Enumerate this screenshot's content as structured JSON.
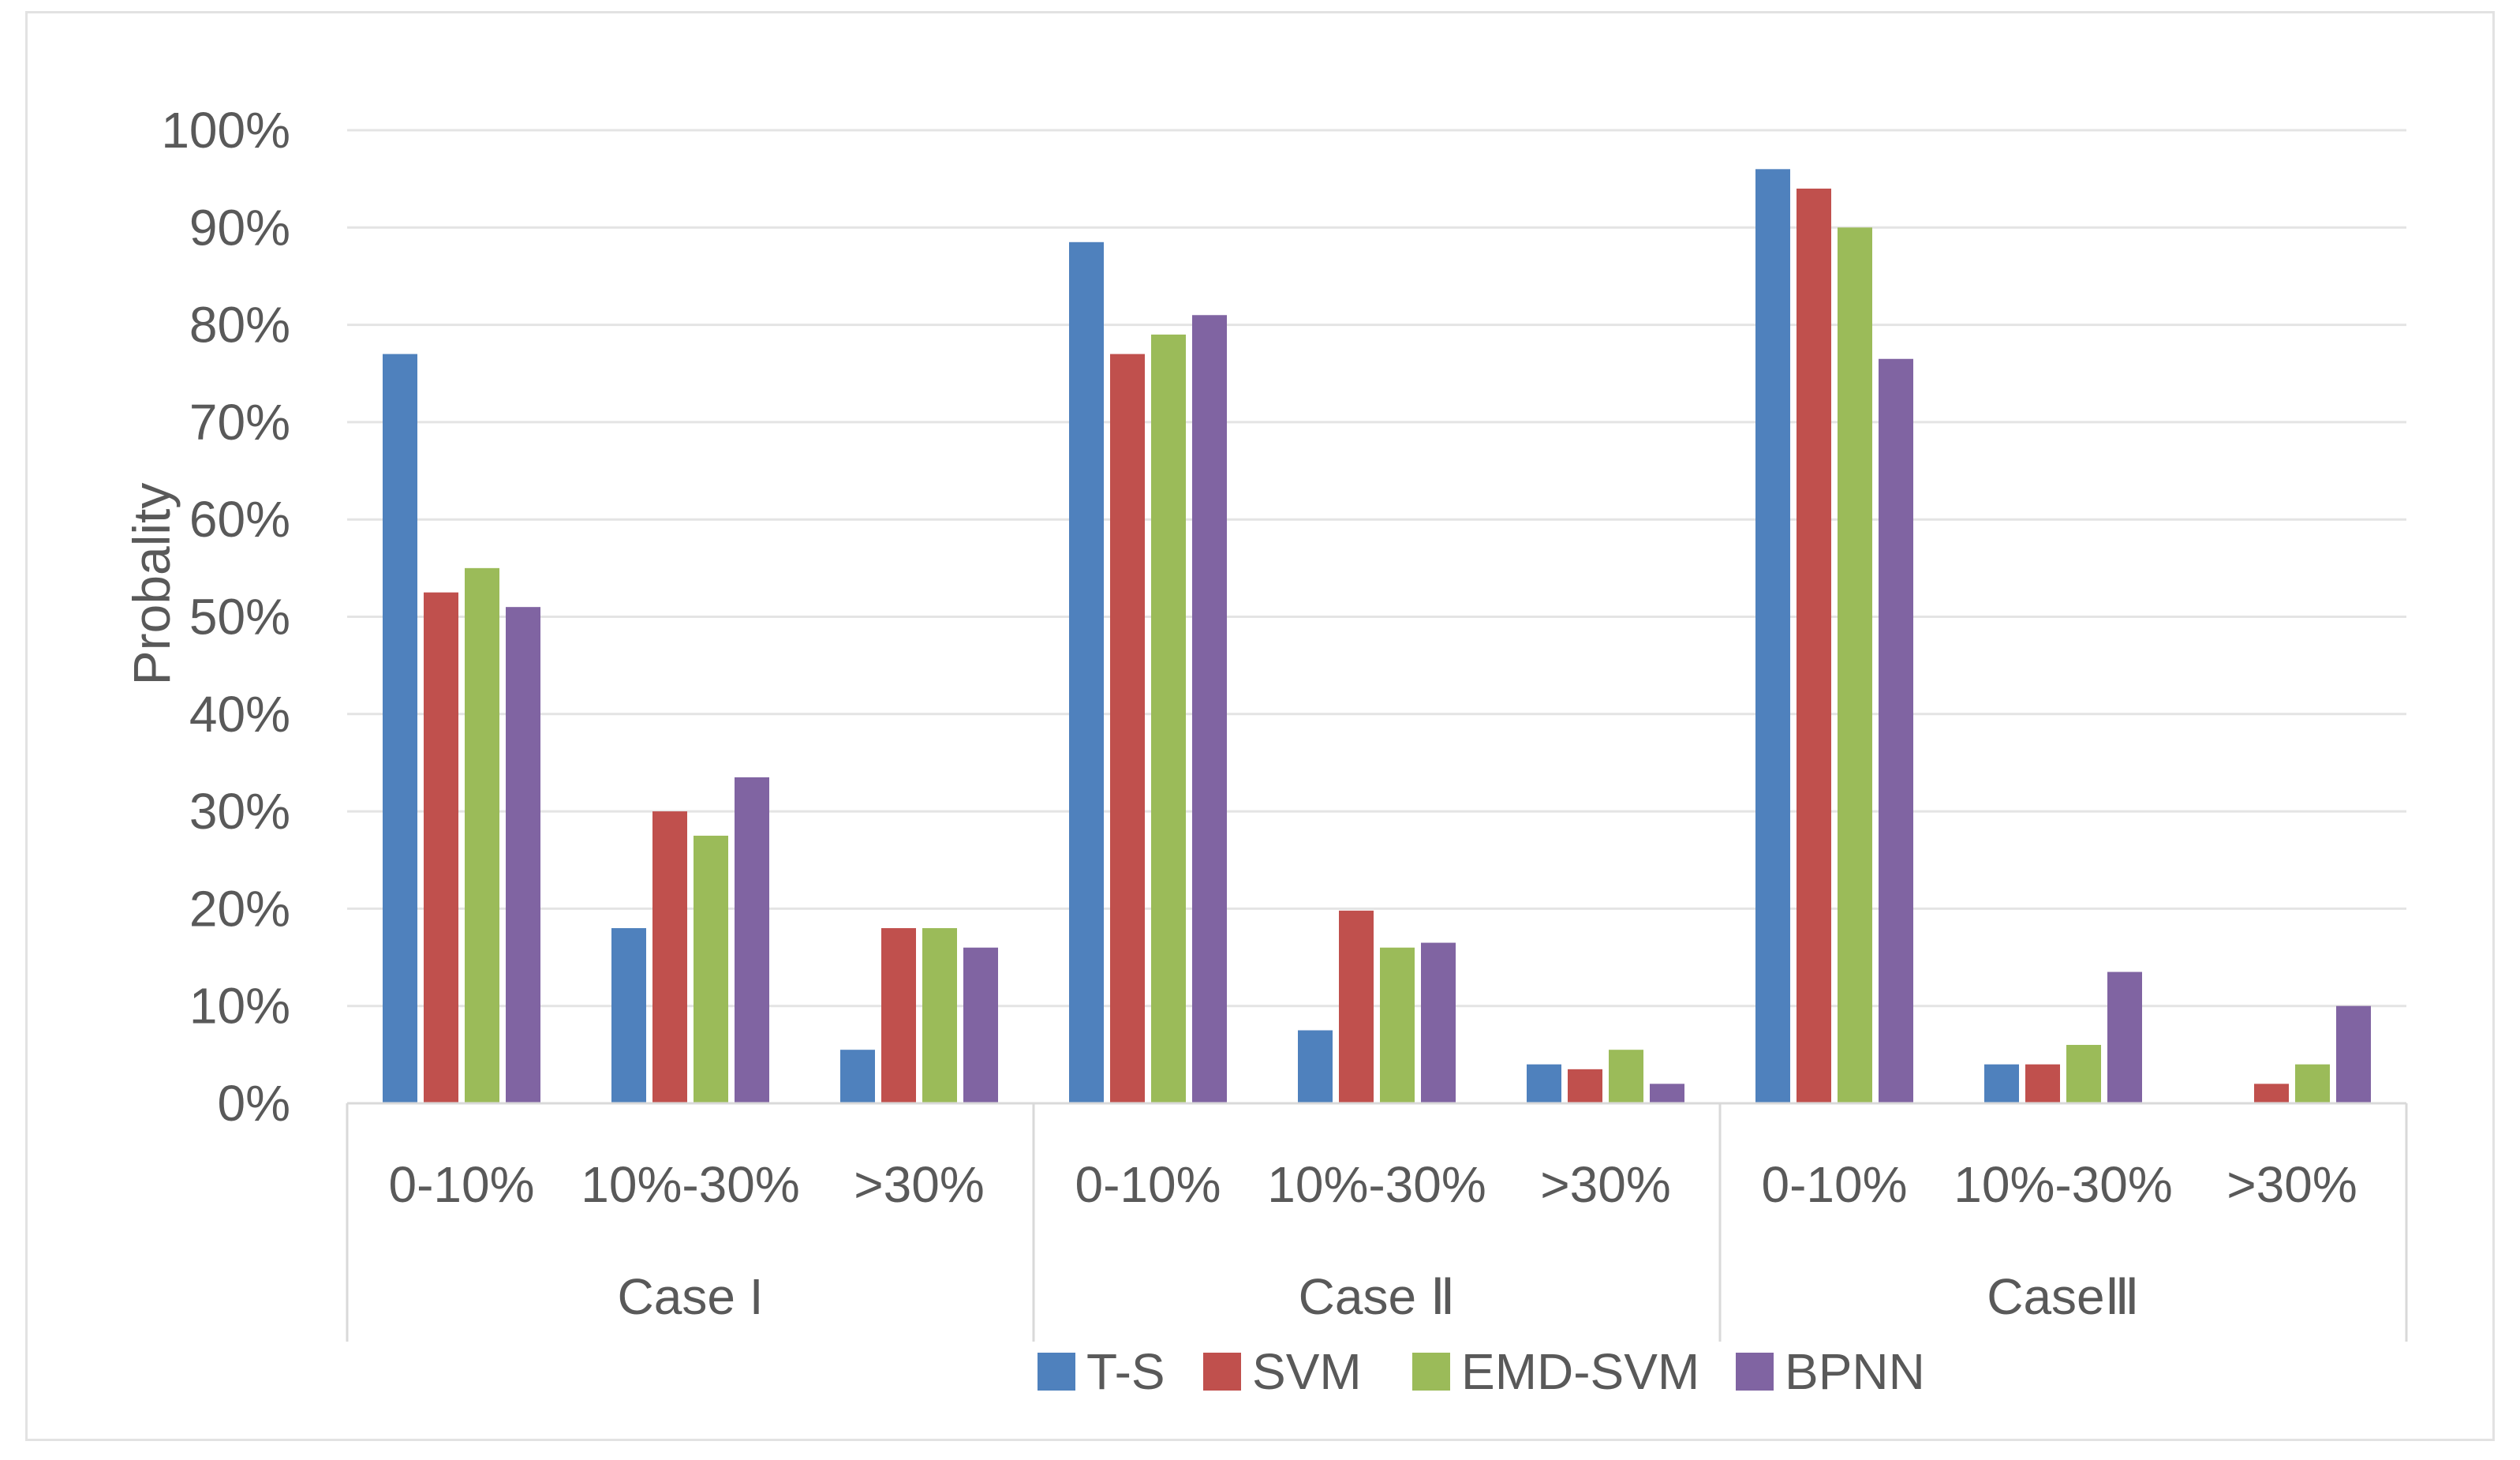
{
  "chart_data": {
    "type": "bar",
    "title": "",
    "xlabel": "",
    "ylabel": "Probality",
    "ylim": [
      0,
      100
    ],
    "yticks": [
      "0%",
      "10%",
      "20%",
      "30%",
      "40%",
      "50%",
      "60%",
      "70%",
      "80%",
      "90%",
      "100%"
    ],
    "grid": true,
    "groups": [
      "Case I",
      "Case Ⅱ",
      "CaseⅢ"
    ],
    "categories": [
      "0-10%",
      "10%-30%",
      ">30%",
      "0-10%",
      "10%-30%",
      ">30%",
      "0-10%",
      "10%-30%",
      ">30%"
    ],
    "series": [
      {
        "name": "T-S",
        "color": "#4f81bd",
        "values": [
          77,
          18,
          5.5,
          88.5,
          7.5,
          4,
          96,
          4,
          0
        ]
      },
      {
        "name": "SVM",
        "color": "#c0504d",
        "values": [
          52.5,
          30,
          18,
          77,
          19.8,
          3.5,
          94,
          4,
          2
        ]
      },
      {
        "name": "EMD-SVM",
        "color": "#9bbb59",
        "values": [
          55,
          27.5,
          18,
          79,
          16,
          5.5,
          90,
          6,
          4
        ]
      },
      {
        "name": "BPNN",
        "color": "#8064a2",
        "values": [
          51,
          33.5,
          16,
          81,
          16.5,
          2,
          76.5,
          13.5,
          10
        ]
      }
    ],
    "legend_position": "bottom"
  }
}
